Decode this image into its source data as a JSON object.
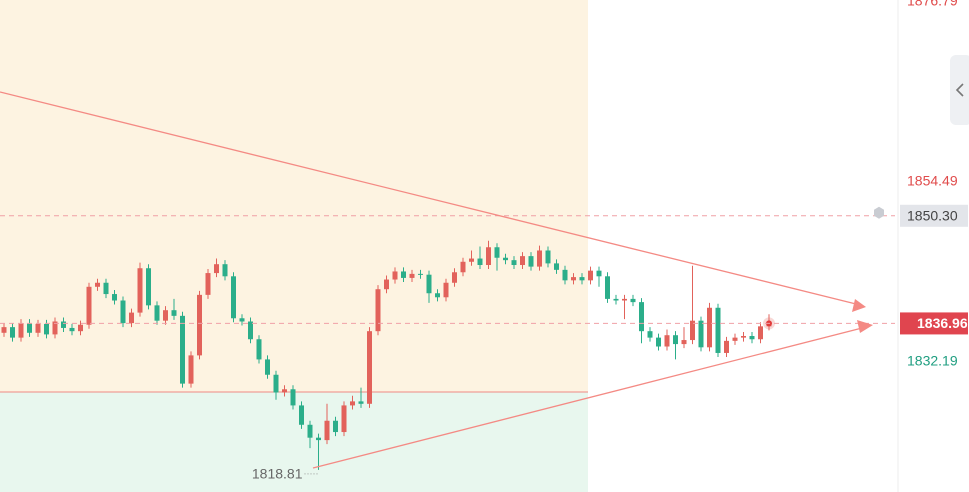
{
  "chart_data": {
    "type": "candlestick",
    "ylim": [
      1816.07,
      1877.04
    ],
    "price_levels": [
      {
        "value": 1876.79,
        "color": "#e04b4b"
      },
      {
        "value": 1854.49,
        "color": "#e04b4b"
      },
      {
        "value": 1832.19,
        "color": "#1f9e80"
      }
    ],
    "marked_levels": [
      {
        "value": 1850.3,
        "label": "1850.30",
        "kind": "alert"
      },
      {
        "value": 1836.96,
        "label": "1836.96",
        "kind": "last"
      }
    ],
    "up_color": "#e2625b",
    "down_color": "#2bae8a",
    "open": [
      1835.8,
      1836.5,
      1835.2,
      1837.0,
      1835.8,
      1836.9,
      1835.6,
      1837.2,
      1836.4,
      1836.0,
      1836.8,
      1841.5,
      1842.0,
      1840.6,
      1839.8,
      1837.0,
      1838.3,
      1843.8,
      1839.2,
      1837.3,
      1838.6,
      1837.9,
      1829.5,
      1833.0,
      1840.5,
      1843.2,
      1844.3,
      1842.8,
      1837.6,
      1837.2,
      1835.0,
      1832.5,
      1830.6,
      1828.4,
      1828.8,
      1826.8,
      1824.4,
      1822.8,
      1822.5,
      1824.9,
      1823.5,
      1826.8,
      1827.3,
      1827.0,
      1836.0,
      1841.2,
      1842.4,
      1843.4,
      1842.6,
      1843.1,
      1843.0,
      1840.7,
      1840.2,
      1842.0,
      1843.3,
      1844.6,
      1845.0,
      1844.2,
      1846.4,
      1845.1,
      1844.8,
      1844.2,
      1845.3,
      1844.0,
      1846.0,
      1844.4,
      1843.6,
      1842.3,
      1842.7,
      1842.3,
      1843.5,
      1842.8,
      1840.0,
      1839.8,
      1840.0,
      1839.6,
      1836.0,
      1835.2,
      1834.1,
      1835.5,
      1834.4,
      1834.9,
      1837.3,
      1834.0,
      1838.9,
      1833.3,
      1834.8,
      1835.2,
      1835.4,
      1835.0,
      1836.6
    ],
    "high": [
      1837.0,
      1837.0,
      1837.5,
      1837.5,
      1837.4,
      1837.4,
      1837.7,
      1837.7,
      1836.9,
      1837.3,
      1842.0,
      1842.5,
      1842.5,
      1841.1,
      1840.3,
      1838.8,
      1844.5,
      1844.3,
      1839.7,
      1839.1,
      1840.0,
      1838.4,
      1833.5,
      1841.0,
      1843.7,
      1845.0,
      1844.8,
      1843.3,
      1838.1,
      1837.7,
      1835.5,
      1833.0,
      1831.1,
      1829.3,
      1829.3,
      1827.3,
      1824.9,
      1823.3,
      1827.0,
      1825.4,
      1827.3,
      1828.0,
      1829.0,
      1836.5,
      1841.7,
      1842.9,
      1843.9,
      1843.9,
      1843.6,
      1843.6,
      1843.5,
      1841.2,
      1842.5,
      1843.8,
      1845.1,
      1846.0,
      1846.5,
      1847.2,
      1846.9,
      1845.6,
      1845.3,
      1845.8,
      1845.8,
      1846.6,
      1846.5,
      1844.9,
      1844.1,
      1843.2,
      1843.2,
      1844.0,
      1844.0,
      1843.3,
      1840.5,
      1840.5,
      1840.5,
      1840.1,
      1836.5,
      1835.7,
      1836.2,
      1836.0,
      1836.5,
      1844.1,
      1837.8,
      1839.5,
      1839.4,
      1835.3,
      1835.7,
      1835.9,
      1835.9,
      1837.1,
      1838.1
    ],
    "low": [
      1835.3,
      1834.7,
      1834.7,
      1835.3,
      1835.3,
      1835.1,
      1835.1,
      1835.9,
      1835.5,
      1835.5,
      1836.3,
      1841.0,
      1840.1,
      1839.3,
      1836.5,
      1836.5,
      1837.8,
      1838.7,
      1836.8,
      1836.8,
      1837.4,
      1829.0,
      1829.0,
      1832.5,
      1840.0,
      1842.7,
      1842.3,
      1837.1,
      1836.7,
      1834.5,
      1832.0,
      1830.1,
      1827.5,
      1827.9,
      1826.3,
      1823.9,
      1821.5,
      1818.81,
      1822.0,
      1823.0,
      1823.0,
      1826.3,
      1826.5,
      1826.5,
      1835.5,
      1840.7,
      1841.9,
      1842.1,
      1842.1,
      1842.5,
      1839.5,
      1839.7,
      1839.7,
      1841.5,
      1842.8,
      1844.1,
      1843.7,
      1843.7,
      1843.5,
      1844.3,
      1843.7,
      1843.7,
      1843.5,
      1843.5,
      1843.9,
      1843.1,
      1841.8,
      1841.8,
      1841.8,
      1841.8,
      1841.5,
      1839.5,
      1839.3,
      1837.5,
      1839.1,
      1834.5,
      1834.7,
      1833.6,
      1833.6,
      1832.5,
      1833.9,
      1834.4,
      1833.5,
      1833.5,
      1832.8,
      1832.8,
      1834.3,
      1834.7,
      1834.5,
      1834.5,
      1836.1
    ],
    "close": [
      1836.5,
      1835.2,
      1837.0,
      1835.8,
      1836.9,
      1835.6,
      1837.2,
      1836.4,
      1836.0,
      1836.8,
      1841.5,
      1842.0,
      1840.6,
      1839.8,
      1837.0,
      1838.3,
      1843.8,
      1839.2,
      1837.3,
      1838.6,
      1837.9,
      1829.5,
      1833.0,
      1840.5,
      1843.2,
      1844.3,
      1842.8,
      1837.6,
      1837.2,
      1835.0,
      1832.5,
      1830.6,
      1828.4,
      1828.8,
      1826.8,
      1824.4,
      1822.8,
      1822.5,
      1824.9,
      1823.5,
      1826.8,
      1827.3,
      1827.0,
      1836.0,
      1841.2,
      1842.4,
      1843.4,
      1842.6,
      1843.1,
      1843.0,
      1840.7,
      1840.2,
      1842.0,
      1843.3,
      1844.6,
      1845.0,
      1844.2,
      1846.4,
      1845.1,
      1844.8,
      1844.2,
      1845.3,
      1844.0,
      1846.0,
      1844.4,
      1843.6,
      1842.3,
      1842.7,
      1842.3,
      1843.5,
      1842.8,
      1840.0,
      1839.8,
      1840.0,
      1839.6,
      1836.0,
      1835.2,
      1834.1,
      1835.5,
      1834.4,
      1834.9,
      1837.3,
      1834.0,
      1838.9,
      1833.3,
      1834.8,
      1835.2,
      1835.4,
      1835.0,
      1836.6,
      1836.96
    ],
    "low_marker_index": 37
  }
}
